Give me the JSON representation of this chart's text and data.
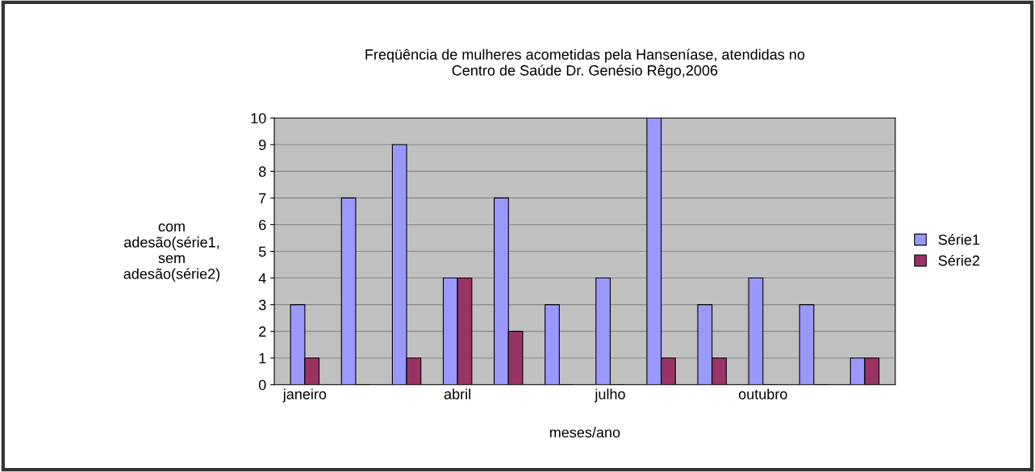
{
  "chart_data": {
    "type": "bar",
    "title": "Freqüência de mulheres acometidas pela Hanseníase, atendidas no\nCentro de Saúde Dr. Genésio Rêgo,2006",
    "xlabel": "meses/ano",
    "ylabel": "com\nadesão(série1,\nsem\nadesão(série2)",
    "categories": [
      "janeiro",
      null,
      null,
      "abril",
      null,
      null,
      "julho",
      null,
      null,
      "outubro",
      null,
      null
    ],
    "series": [
      {
        "name": "Série1",
        "color": "#9999ff",
        "values": [
          3,
          7,
          9,
          4,
          7,
          3,
          4,
          10,
          3,
          4,
          3,
          1
        ]
      },
      {
        "name": "Série2",
        "color": "#993366",
        "values": [
          1,
          0,
          1,
          4,
          2,
          0,
          0,
          1,
          1,
          0,
          0,
          1
        ]
      }
    ],
    "ylim": [
      0,
      10
    ],
    "yticks": [
      0,
      1,
      2,
      3,
      4,
      5,
      6,
      7,
      8,
      9,
      10
    ],
    "grid": "y",
    "legend": "right"
  }
}
